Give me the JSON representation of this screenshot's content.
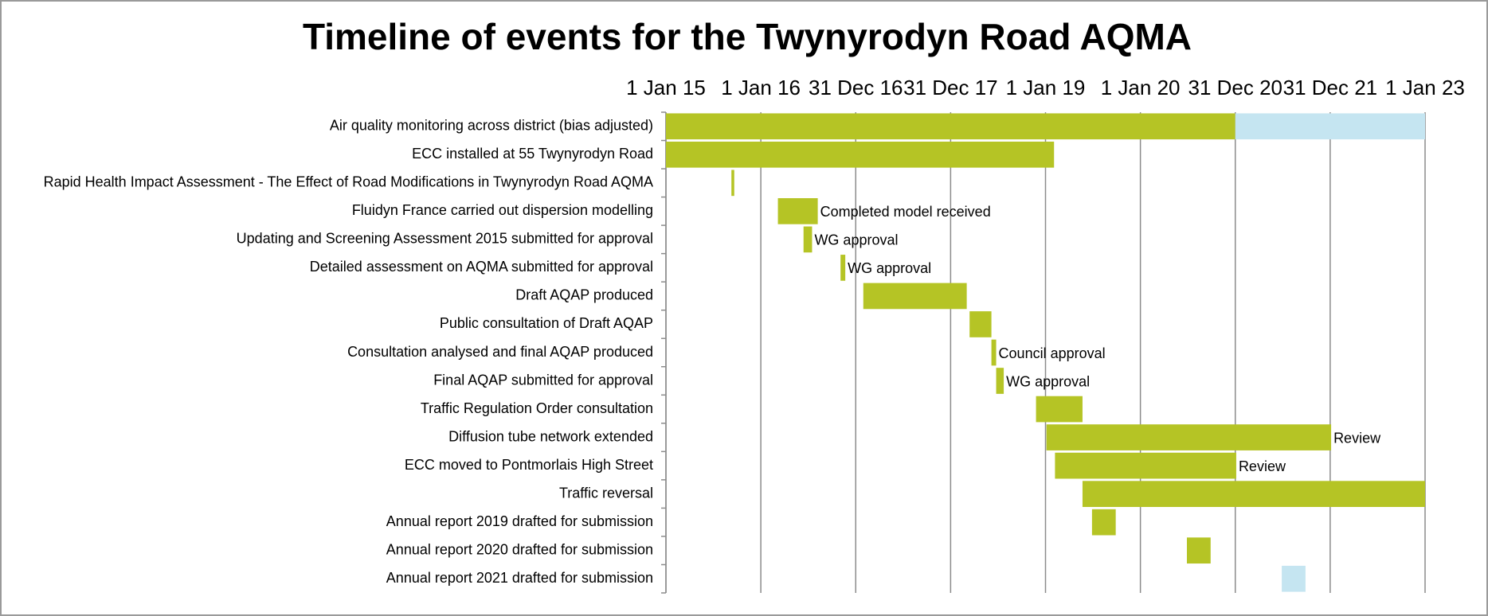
{
  "chart_data": {
    "type": "gantt",
    "title": "Timeline of events for the Twynyrodyn Road AQMA",
    "xlim": [
      2015,
      2023
    ],
    "xticks": [
      {
        "value": 2015,
        "label": "1 Jan 15"
      },
      {
        "value": 2016,
        "label": "1 Jan 16"
      },
      {
        "value": 2017,
        "label": "31 Dec 16"
      },
      {
        "value": 2018,
        "label": "31 Dec 17"
      },
      {
        "value": 2019,
        "label": "1 Jan 19"
      },
      {
        "value": 2020,
        "label": "1 Jan 20"
      },
      {
        "value": 2021,
        "label": "31 Dec 20"
      },
      {
        "value": 2022,
        "label": "31 Dec 21"
      },
      {
        "value": 2023,
        "label": "1 Jan 23"
      }
    ],
    "grid": true,
    "tasks": [
      {
        "name": "Air quality monitoring across district (bias adjusted)",
        "bars": [
          {
            "start": 2015,
            "end": 2021,
            "color": "#b5c425"
          },
          {
            "start": 2021,
            "end": 2023,
            "color": "#c5e5f1"
          }
        ]
      },
      {
        "name": "ECC installed at 55 Twynyrodyn Road",
        "bars": [
          {
            "start": 2015,
            "end": 2019.09,
            "color": "#b5c425"
          }
        ]
      },
      {
        "name": "Rapid Health Impact Assessment - The Effect of Road Modifications in Twynyrodyn Road AQMA",
        "bars": [
          {
            "start": 2015.69,
            "end": 2015.72,
            "color": "#b5c425"
          }
        ]
      },
      {
        "name": "Fluidyn France carried out dispersion modelling",
        "bars": [
          {
            "start": 2016.18,
            "end": 2016.6,
            "color": "#b5c425"
          }
        ],
        "annotation": "Completed model received"
      },
      {
        "name": "Updating and Screening Assessment 2015 submitted for approval",
        "bars": [
          {
            "start": 2016.45,
            "end": 2016.54,
            "color": "#b5c425"
          }
        ],
        "annotation": "WG approval"
      },
      {
        "name": "Detailed assessment on AQMA submitted for approval",
        "bars": [
          {
            "start": 2016.84,
            "end": 2016.89,
            "color": "#b5c425"
          }
        ],
        "annotation": "WG approval"
      },
      {
        "name": "Draft AQAP produced",
        "bars": [
          {
            "start": 2017.08,
            "end": 2018.17,
            "color": "#b5c425"
          }
        ]
      },
      {
        "name": "Public consultation of Draft AQAP",
        "bars": [
          {
            "start": 2018.2,
            "end": 2018.43,
            "color": "#b5c425"
          }
        ]
      },
      {
        "name": "Consultation analysed and final AQAP produced",
        "bars": [
          {
            "start": 2018.43,
            "end": 2018.48,
            "color": "#b5c425"
          }
        ],
        "annotation": "Council approval"
      },
      {
        "name": "Final AQAP submitted for approval",
        "bars": [
          {
            "start": 2018.48,
            "end": 2018.56,
            "color": "#b5c425"
          }
        ],
        "annotation": "WG approval"
      },
      {
        "name": "Traffic Regulation Order consultation",
        "bars": [
          {
            "start": 2018.9,
            "end": 2019.39,
            "color": "#b5c425"
          }
        ]
      },
      {
        "name": "Diffusion tube network extended",
        "bars": [
          {
            "start": 2019.01,
            "end": 2022.01,
            "color": "#b5c425"
          }
        ],
        "annotation": "Review"
      },
      {
        "name": "ECC moved to Pontmorlais High Street",
        "bars": [
          {
            "start": 2019.1,
            "end": 2021.01,
            "color": "#b5c425"
          }
        ],
        "annotation": "Review"
      },
      {
        "name": "Traffic reversal",
        "bars": [
          {
            "start": 2019.39,
            "end": 2023,
            "color": "#b5c425"
          }
        ]
      },
      {
        "name": "Annual report 2019 drafted for submission",
        "bars": [
          {
            "start": 2019.49,
            "end": 2019.74,
            "color": "#b5c425"
          }
        ]
      },
      {
        "name": "Annual report 2020 drafted for submission",
        "bars": [
          {
            "start": 2020.49,
            "end": 2020.74,
            "color": "#b5c425"
          }
        ]
      },
      {
        "name": "Annual report 2021 drafted for submission",
        "bars": [
          {
            "start": 2021.49,
            "end": 2021.74,
            "color": "#c5e5f1"
          }
        ]
      }
    ]
  }
}
